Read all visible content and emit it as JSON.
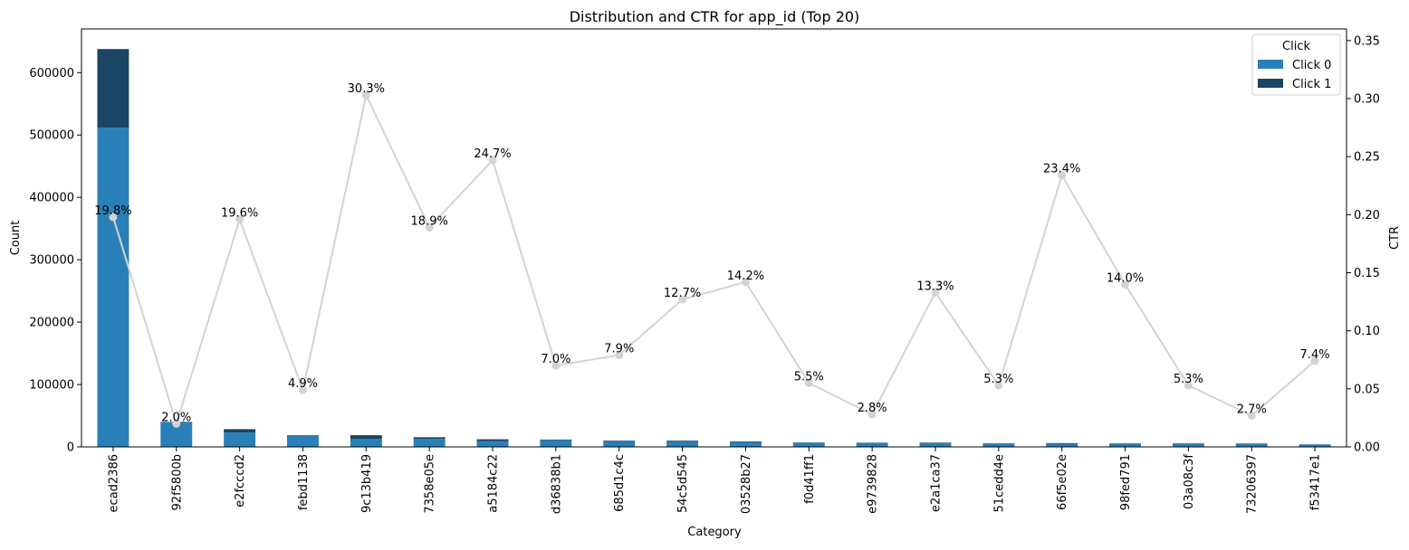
{
  "chart_data": {
    "type": "bar",
    "title": "Distribution and CTR for app_id (Top 20)",
    "xlabel": "Category",
    "ylabel": "Count",
    "y2label": "CTR",
    "categories": [
      "ecad2386",
      "92f5800b",
      "e2fcccd2",
      "febd1138",
      "9c13b419",
      "7358e05e",
      "a5184c22",
      "d36838b1",
      "685d1c4c",
      "54c5d545",
      "03528b27",
      "f0d41ff1",
      "e9739828",
      "e2a1ca37",
      "51cedd4e",
      "66f5e02e",
      "98fed791",
      "03a08c3f",
      "73206397",
      "f53417e1"
    ],
    "series": [
      {
        "name": "Click 0",
        "color": "#2980b9",
        "values": [
          511500,
          39200,
          22800,
          17800,
          13000,
          12600,
          9200,
          11000,
          9300,
          8600,
          7500,
          6700,
          6600,
          5900,
          5600,
          4600,
          4800,
          5500,
          5400,
          3800
        ]
      },
      {
        "name": "Click 1",
        "color": "#1a4563",
        "values": [
          126300,
          800,
          5600,
          900,
          5700,
          2900,
          3000,
          800,
          800,
          1300,
          1200,
          400,
          200,
          900,
          300,
          1400,
          800,
          300,
          150,
          300
        ]
      }
    ],
    "ctr": {
      "name": "CTR",
      "color": "#d3d3d3",
      "values": [
        0.198,
        0.02,
        0.196,
        0.049,
        0.303,
        0.189,
        0.247,
        0.07,
        0.079,
        0.127,
        0.142,
        0.055,
        0.028,
        0.133,
        0.053,
        0.234,
        0.14,
        0.053,
        0.027,
        0.074
      ],
      "labels": [
        "19.8%",
        "2.0%",
        "19.6%",
        "4.9%",
        "30.3%",
        "18.9%",
        "24.7%",
        "7.0%",
        "7.9%",
        "12.7%",
        "14.2%",
        "5.5%",
        "2.8%",
        "13.3%",
        "5.3%",
        "23.4%",
        "14.0%",
        "5.3%",
        "2.7%",
        "7.4%"
      ]
    },
    "ylim": [
      0,
      670000
    ],
    "yticks": [
      0,
      100000,
      200000,
      300000,
      400000,
      500000,
      600000
    ],
    "y2lim": [
      0,
      0.36
    ],
    "y2ticks": [
      "0.00",
      "0.05",
      "0.10",
      "0.15",
      "0.20",
      "0.25",
      "0.30",
      "0.35"
    ],
    "legend": {
      "title": "Click",
      "position": "top-right"
    },
    "grid": false
  }
}
